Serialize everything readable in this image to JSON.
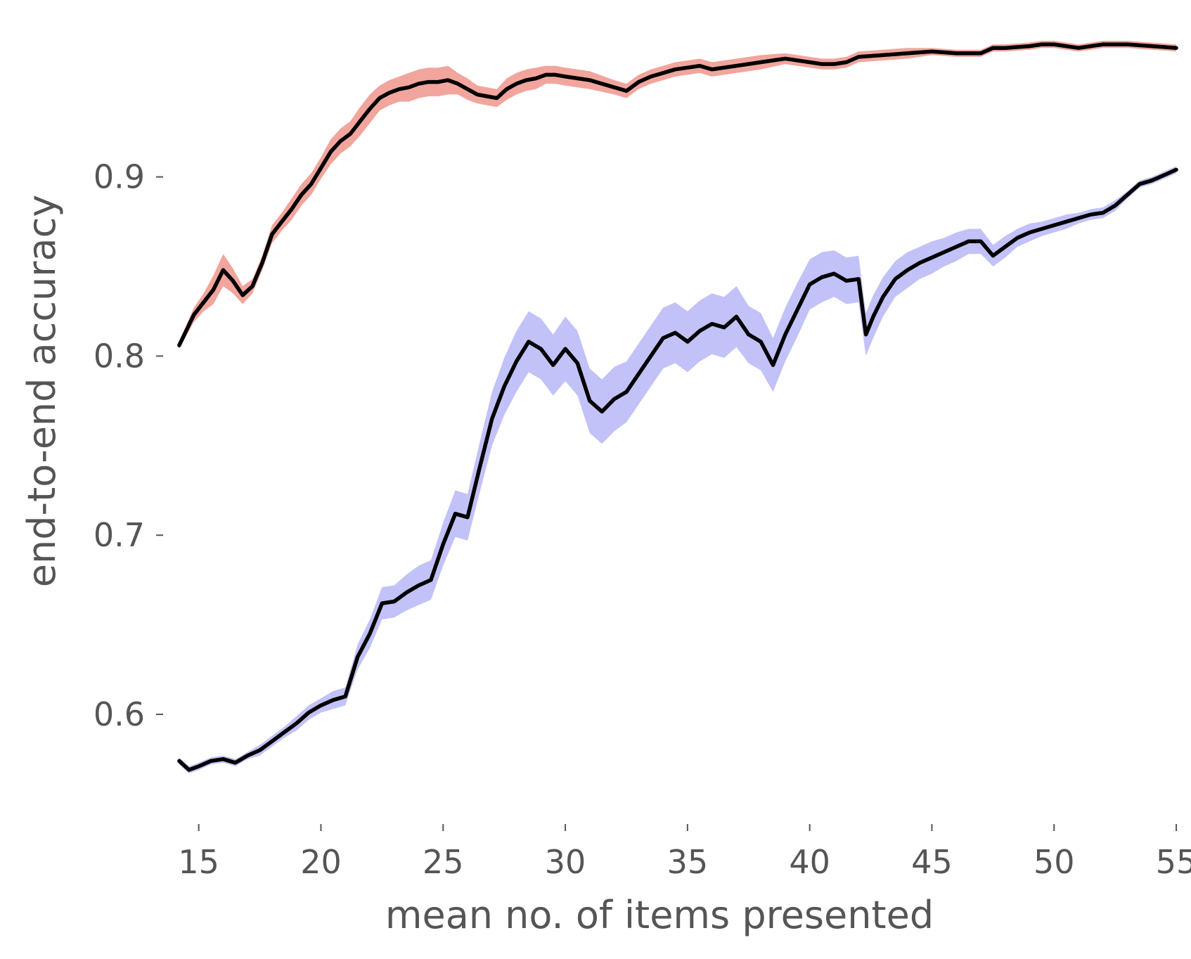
{
  "chart_data": {
    "type": "line",
    "title": "",
    "xlabel": "mean no. of items presented",
    "ylabel": "end-to-end accuracy",
    "xlim": [
      13.6,
      55.2
    ],
    "ylim": [
      0.5435,
      0.9909
    ],
    "xticks": [
      15,
      20,
      25,
      30,
      35,
      40,
      45,
      50,
      55
    ],
    "yticks": [
      0.6,
      0.7,
      0.8,
      0.9
    ],
    "xtick_labels": [
      "15",
      "20",
      "25",
      "30",
      "35",
      "40",
      "45",
      "50",
      "55"
    ],
    "ytick_labels": [
      "0.6",
      "0.7",
      "0.8",
      "0.9"
    ],
    "grid": false,
    "legend": "none",
    "colors": {
      "line": "#000000",
      "upper_band": "#ee8f85",
      "lower_band": "#b3b3f7",
      "text": "#555555"
    },
    "series": [
      {
        "line_color": "#000000",
        "band_color": "#ee8f85",
        "x": [
          14.2,
          14.8,
          15.2,
          15.6,
          16.0,
          16.4,
          16.8,
          17.2,
          17.6,
          18.0,
          18.4,
          18.8,
          19.2,
          19.6,
          20.0,
          20.4,
          20.8,
          21.2,
          21.6,
          22.0,
          22.4,
          22.8,
          23.2,
          23.6,
          24.0,
          24.4,
          24.8,
          25.2,
          25.6,
          26.0,
          26.4,
          26.8,
          27.2,
          27.6,
          28.0,
          28.4,
          28.8,
          29.2,
          29.6,
          30.0,
          31.0,
          32.0,
          32.5,
          33.0,
          33.5,
          34.0,
          34.5,
          35.0,
          35.5,
          36.0,
          37.0,
          38.0,
          39.0,
          40.0,
          40.5,
          41.0,
          41.5,
          42.0,
          43.0,
          44.0,
          45.0,
          46.0,
          47.0,
          47.5,
          48.0,
          49.0,
          49.5,
          50.0,
          51.0,
          52.0,
          53.0,
          54.0,
          55.0
        ],
        "y": [
          0.806,
          0.823,
          0.83,
          0.837,
          0.848,
          0.842,
          0.834,
          0.839,
          0.852,
          0.868,
          0.875,
          0.882,
          0.89,
          0.896,
          0.905,
          0.914,
          0.92,
          0.924,
          0.931,
          0.938,
          0.944,
          0.947,
          0.949,
          0.95,
          0.952,
          0.953,
          0.953,
          0.954,
          0.952,
          0.949,
          0.946,
          0.945,
          0.944,
          0.949,
          0.952,
          0.954,
          0.955,
          0.957,
          0.957,
          0.956,
          0.954,
          0.95,
          0.948,
          0.953,
          0.956,
          0.958,
          0.96,
          0.961,
          0.962,
          0.96,
          0.962,
          0.964,
          0.966,
          0.964,
          0.963,
          0.963,
          0.964,
          0.967,
          0.968,
          0.969,
          0.97,
          0.969,
          0.969,
          0.972,
          0.972,
          0.973,
          0.974,
          0.974,
          0.972,
          0.974,
          0.974,
          0.973,
          0.972
        ],
        "band_half_width": [
          0.002,
          0.004,
          0.005,
          0.008,
          0.009,
          0.007,
          0.005,
          0.004,
          0.004,
          0.005,
          0.005,
          0.006,
          0.006,
          0.006,
          0.006,
          0.007,
          0.007,
          0.007,
          0.008,
          0.008,
          0.007,
          0.007,
          0.007,
          0.008,
          0.008,
          0.008,
          0.008,
          0.008,
          0.006,
          0.006,
          0.005,
          0.005,
          0.005,
          0.006,
          0.006,
          0.006,
          0.006,
          0.005,
          0.005,
          0.005,
          0.005,
          0.004,
          0.004,
          0.004,
          0.004,
          0.004,
          0.004,
          0.004,
          0.004,
          0.004,
          0.004,
          0.004,
          0.003,
          0.003,
          0.003,
          0.003,
          0.003,
          0.003,
          0.003,
          0.003,
          0.002,
          0.002,
          0.002,
          0.002,
          0.002,
          0.002,
          0.002,
          0.002,
          0.002,
          0.002,
          0.002,
          0.002,
          0.002
        ]
      },
      {
        "line_color": "#000000",
        "band_color": "#b3b3f7",
        "x": [
          14.2,
          14.6,
          15.0,
          15.5,
          16.0,
          16.5,
          17.0,
          17.5,
          18.0,
          18.5,
          19.0,
          19.5,
          20.0,
          20.5,
          21.0,
          21.5,
          22.0,
          22.5,
          23.0,
          23.5,
          24.0,
          24.5,
          25.0,
          25.5,
          26.0,
          26.5,
          27.0,
          27.5,
          28.0,
          28.5,
          29.0,
          29.5,
          30.0,
          30.5,
          31.0,
          31.5,
          32.0,
          32.5,
          33.0,
          33.5,
          34.0,
          34.5,
          35.0,
          35.5,
          36.0,
          36.5,
          37.0,
          37.5,
          38.0,
          38.5,
          39.0,
          39.5,
          40.0,
          40.5,
          41.0,
          41.5,
          42.0,
          42.3,
          42.6,
          43.0,
          43.5,
          44.0,
          44.5,
          45.0,
          45.5,
          46.0,
          46.5,
          47.0,
          47.5,
          48.0,
          48.5,
          49.0,
          49.5,
          50.0,
          50.5,
          51.0,
          51.5,
          52.0,
          52.5,
          53.0,
          53.5,
          54.0,
          54.5,
          55.0
        ],
        "y": [
          0.574,
          0.569,
          0.571,
          0.574,
          0.575,
          0.573,
          0.577,
          0.58,
          0.585,
          0.59,
          0.595,
          0.601,
          0.605,
          0.608,
          0.61,
          0.632,
          0.645,
          0.662,
          0.663,
          0.668,
          0.672,
          0.675,
          0.695,
          0.712,
          0.71,
          0.738,
          0.765,
          0.783,
          0.797,
          0.808,
          0.804,
          0.795,
          0.804,
          0.796,
          0.775,
          0.769,
          0.776,
          0.78,
          0.79,
          0.8,
          0.81,
          0.813,
          0.808,
          0.814,
          0.818,
          0.816,
          0.822,
          0.812,
          0.808,
          0.795,
          0.812,
          0.826,
          0.84,
          0.844,
          0.846,
          0.842,
          0.843,
          0.812,
          0.822,
          0.833,
          0.843,
          0.848,
          0.852,
          0.855,
          0.858,
          0.861,
          0.864,
          0.864,
          0.856,
          0.861,
          0.866,
          0.869,
          0.871,
          0.873,
          0.875,
          0.877,
          0.879,
          0.88,
          0.884,
          0.89,
          0.896,
          0.898,
          0.901,
          0.904
        ],
        "band_half_width": [
          0.002,
          0.002,
          0.002,
          0.002,
          0.002,
          0.002,
          0.002,
          0.003,
          0.003,
          0.003,
          0.004,
          0.004,
          0.004,
          0.005,
          0.005,
          0.007,
          0.008,
          0.009,
          0.009,
          0.01,
          0.011,
          0.011,
          0.012,
          0.013,
          0.013,
          0.014,
          0.015,
          0.016,
          0.017,
          0.017,
          0.017,
          0.017,
          0.018,
          0.018,
          0.018,
          0.018,
          0.018,
          0.017,
          0.017,
          0.017,
          0.017,
          0.017,
          0.017,
          0.017,
          0.017,
          0.017,
          0.017,
          0.016,
          0.016,
          0.015,
          0.015,
          0.015,
          0.014,
          0.014,
          0.013,
          0.013,
          0.013,
          0.012,
          0.012,
          0.011,
          0.01,
          0.01,
          0.009,
          0.009,
          0.008,
          0.008,
          0.007,
          0.007,
          0.006,
          0.006,
          0.005,
          0.005,
          0.004,
          0.004,
          0.004,
          0.003,
          0.003,
          0.003,
          0.003,
          0.002,
          0.002,
          0.002,
          0.002,
          0.002
        ]
      }
    ]
  }
}
